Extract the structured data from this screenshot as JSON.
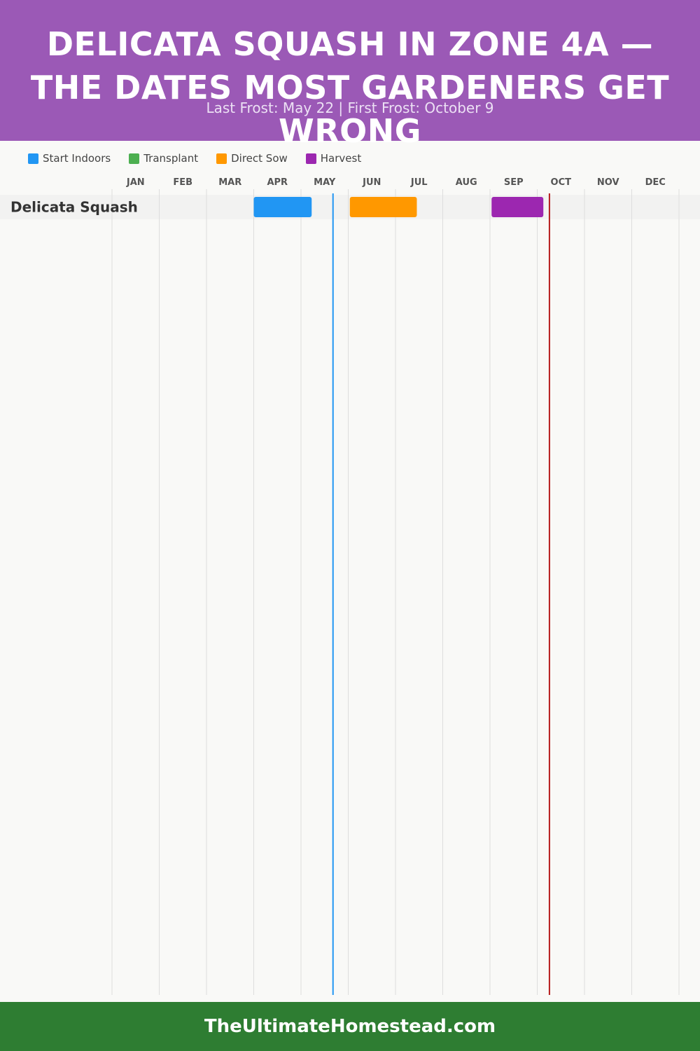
{
  "header": {
    "title": "DELICATA SQUASH IN ZONE 4A — THE DATES MOST GARDENERS GET WRONG",
    "subtitle": "Last Frost: May 22 | First Frost: October 9",
    "background_color": "#9b59b6"
  },
  "legend": {
    "items": [
      {
        "label": "Start Indoors",
        "color": "#2196f3"
      },
      {
        "label": "Transplant",
        "color": "#4caf50"
      },
      {
        "label": "Direct Sow",
        "color": "#ff9800"
      },
      {
        "label": "Harvest",
        "color": "#9c27b0"
      }
    ]
  },
  "chart_data": {
    "type": "gantt",
    "months": [
      "JAN",
      "FEB",
      "MAR",
      "APR",
      "MAY",
      "JUN",
      "JUL",
      "AUG",
      "SEP",
      "OCT",
      "NOV",
      "DEC"
    ],
    "rows": [
      {
        "label": "Delicata Squash",
        "tasks": [
          {
            "phase": "Start Indoors",
            "start": "Apr 1",
            "end": "May 8"
          },
          {
            "phase": "Direct Sow",
            "start": "Jun 2",
            "end": "Jul 15"
          },
          {
            "phase": "Harvest",
            "start": "Sep 2",
            "end": "Oct 5"
          }
        ]
      }
    ],
    "markers": [
      {
        "name": "Last Frost",
        "date": "May 22",
        "color": "#2196f3"
      },
      {
        "name": "First Frost",
        "date": "October 9",
        "color": "#b71c1c"
      }
    ],
    "grid": true
  },
  "footer": {
    "text": "TheUltimateHomestead.com",
    "background_color": "#2e7d32"
  }
}
